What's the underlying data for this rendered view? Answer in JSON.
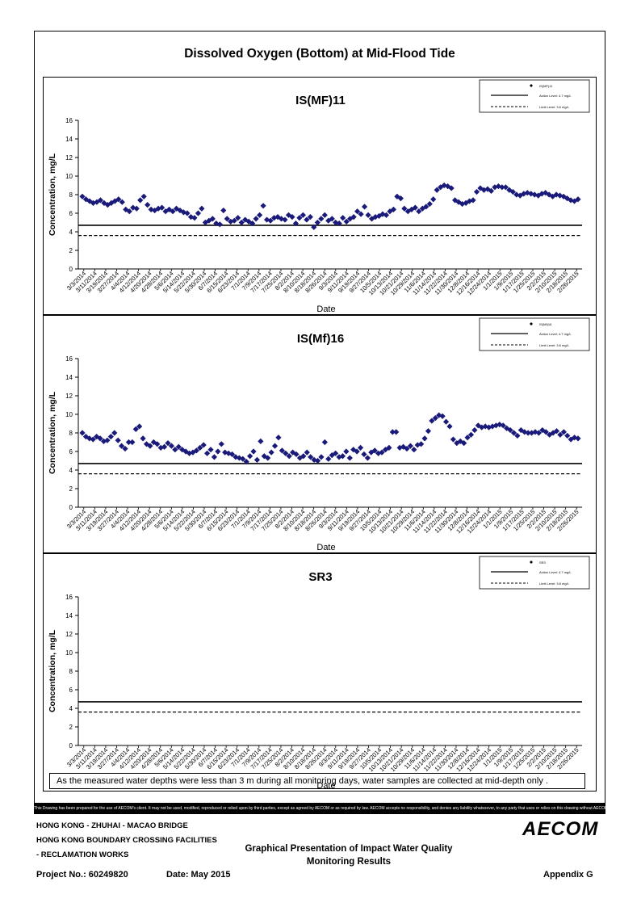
{
  "page": {
    "main_title": "Dissolved Oxygen (Bottom) at Mid-Flood Tide",
    "note": "As the measured water depths were less than 3 m during all monitoring days, water samples are collected  at mid-depth only .",
    "disclaimer": "This Drawing has been prepared for the use of AECOM's client. It may not be used, modified, reproduced or relied upon by third parties, except as agreed by AECOM or as required by law. AECOM accepts no responsibility, and denies any liability whatsoever, to any party that uses or relies on this drawing without AECOM's express written consent.",
    "footer": {
      "line1": "HONG KONG - ZHUHAI - MACAO BRIDGE",
      "line2": "HONG KONG BOUNDARY CROSSING FACILITIES",
      "line3": "- RECLAMATION WORKS",
      "center_line1": "Graphical Presentation of Impact Water Quality",
      "center_line2": "Monitoring Results",
      "project": "Project No.: 60249820",
      "date": "Date: May 2015",
      "appendix": "Appendix G",
      "logo": "AECOM"
    }
  },
  "chart_data": [
    {
      "type": "scatter",
      "title": "IS(MF)11",
      "xlabel": "Date",
      "ylabel": "Concentration, mg/L",
      "ylim": [
        0,
        16
      ],
      "yticks": [
        0,
        2,
        4,
        6,
        8,
        10,
        12,
        14,
        16
      ],
      "xticks": [
        "3/3/2014",
        "3/11/2014",
        "3/19/2014",
        "3/27/2014",
        "4/4/2014",
        "4/12/2014",
        "4/20/2014",
        "4/28/2014",
        "5/6/2014",
        "5/14/2014",
        "5/22/2014",
        "5/30/2014",
        "6/7/2014",
        "6/15/2014",
        "6/23/2014",
        "7/1/2014",
        "7/9/2014",
        "7/17/2014",
        "7/25/2014",
        "8/2/2014",
        "8/10/2014",
        "8/18/2014",
        "8/26/2014",
        "9/3/2014",
        "9/11/2014",
        "9/19/2014",
        "9/27/2014",
        "10/5/2014",
        "10/13/2014",
        "10/21/2014",
        "10/29/2014",
        "11/6/2014",
        "11/14/2014",
        "11/22/2014",
        "11/30/2014",
        "12/8/2014",
        "12/16/2014",
        "12/24/2014",
        "1/1/2015",
        "1/9/2015",
        "1/17/2015",
        "1/25/2015",
        "2/2/2015",
        "2/10/2015",
        "2/18/2015",
        "2/26/2015"
      ],
      "legend": {
        "placement": "top-right",
        "series": "IS(MF)11",
        "action": "Action Level: 4.7 mg/L",
        "limit": "Limit Level: 3.6 mg/L"
      },
      "action_level": 4.7,
      "limit_level": 3.6,
      "values": [
        7.8,
        7.5,
        7.3,
        7.1,
        7.2,
        7.4,
        7.1,
        6.9,
        7.1,
        7.3,
        7.5,
        7.2,
        6.4,
        6.2,
        6.6,
        6.5,
        7.4,
        7.8,
        6.9,
        6.4,
        6.3,
        6.5,
        6.6,
        6.2,
        6.4,
        6.2,
        6.5,
        6.3,
        6.1,
        6.0,
        5.6,
        5.5,
        6.0,
        6.5,
        5.0,
        5.2,
        5.4,
        4.9,
        4.8,
        6.3,
        5.4,
        5.1,
        5.2,
        5.5,
        5.0,
        5.3,
        5.1,
        4.9,
        5.4,
        5.8,
        6.8,
        5.3,
        5.2,
        5.5,
        5.6,
        5.4,
        5.3,
        5.8,
        5.6,
        4.9,
        5.5,
        5.8,
        5.3,
        5.6,
        4.5,
        5.0,
        5.4,
        5.8,
        5.2,
        5.4,
        5.0,
        4.9,
        5.5,
        5.1,
        5.4,
        5.6,
        6.2,
        5.9,
        6.7,
        5.8,
        5.4,
        5.6,
        5.7,
        5.9,
        5.8,
        6.2,
        6.4,
        7.8,
        7.6,
        6.5,
        6.2,
        6.4,
        6.6,
        6.2,
        6.5,
        6.7,
        7.0,
        7.5,
        8.5,
        8.8,
        9.0,
        8.9,
        8.7,
        7.4,
        7.2,
        7.0,
        7.1,
        7.3,
        7.4,
        8.3,
        8.7,
        8.5,
        8.6,
        8.4,
        8.8,
        8.9,
        8.8,
        8.8,
        8.5,
        8.3,
        8.0,
        7.9,
        8.1,
        8.2,
        8.1,
        8.0,
        7.9,
        8.1,
        8.2,
        8.0,
        7.8,
        8.0,
        7.9,
        7.8,
        7.6,
        7.4,
        7.3,
        7.5
      ]
    },
    {
      "type": "scatter",
      "title": "IS(Mf)16",
      "xlabel": "Date",
      "ylabel": "Concentration, mg/L",
      "ylim": [
        0,
        16
      ],
      "yticks": [
        0,
        2,
        4,
        6,
        8,
        10,
        12,
        14,
        16
      ],
      "xticks": [
        "3/3/2014",
        "3/11/2014",
        "3/19/2014",
        "3/27/2014",
        "4/4/2014",
        "4/12/2014",
        "4/20/2014",
        "4/28/2014",
        "5/6/2014",
        "5/14/2014",
        "5/22/2014",
        "5/30/2014",
        "6/7/2014",
        "6/15/2014",
        "6/23/2014",
        "7/1/2014",
        "7/9/2014",
        "7/17/2014",
        "7/25/2014",
        "8/2/2014",
        "8/10/2014",
        "8/18/2014",
        "8/26/2014",
        "9/3/2014",
        "9/11/2014",
        "9/19/2014",
        "9/27/2014",
        "10/5/2014",
        "10/13/2014",
        "10/21/2014",
        "10/29/2014",
        "11/6/2014",
        "11/14/2014",
        "11/22/2014",
        "11/30/2014",
        "12/8/2014",
        "12/16/2014",
        "12/24/2014",
        "1/1/2015",
        "1/9/2015",
        "1/17/2015",
        "1/25/2015",
        "2/2/2015",
        "2/10/2015",
        "2/18/2015",
        "2/26/2015"
      ],
      "legend": {
        "placement": "top-right",
        "series": "IS(Mf)16",
        "action": "Action Level: 4.7 mg/L",
        "limit": "Limit Level: 3.6 mg/L"
      },
      "action_level": 4.7,
      "limit_level": 3.6,
      "values": [
        8.0,
        7.6,
        7.4,
        7.3,
        7.6,
        7.4,
        7.1,
        7.2,
        7.6,
        8.0,
        7.2,
        6.6,
        6.3,
        7.0,
        7.0,
        8.4,
        8.7,
        7.4,
        6.8,
        6.6,
        7.0,
        6.8,
        6.4,
        6.5,
        6.9,
        6.6,
        6.2,
        6.5,
        6.2,
        6.0,
        5.8,
        5.9,
        6.1,
        6.4,
        6.7,
        5.8,
        6.2,
        5.4,
        6.0,
        6.8,
        5.9,
        5.8,
        5.7,
        5.4,
        5.3,
        5.2,
        4.9,
        5.5,
        6.0,
        5.1,
        7.1,
        5.5,
        5.3,
        5.9,
        6.6,
        7.5,
        6.1,
        5.8,
        5.5,
        5.9,
        5.7,
        5.3,
        5.5,
        5.9,
        5.4,
        5.1,
        5.0,
        5.4,
        7.0,
        5.2,
        5.6,
        5.8,
        5.4,
        5.5,
        6.0,
        5.3,
        6.2,
        6.0,
        6.4,
        5.7,
        5.3,
        5.9,
        6.1,
        5.8,
        5.9,
        6.2,
        6.4,
        8.1,
        8.1,
        6.4,
        6.5,
        6.3,
        6.6,
        6.2,
        6.7,
        6.8,
        7.4,
        8.2,
        9.3,
        9.6,
        9.9,
        9.8,
        9.2,
        8.7,
        7.3,
        6.9,
        7.1,
        6.9,
        7.5,
        7.8,
        8.3,
        8.8,
        8.6,
        8.7,
        8.6,
        8.7,
        8.8,
        8.9,
        8.8,
        8.5,
        8.3,
        8.0,
        7.7,
        8.3,
        8.1,
        8.0,
        8.0,
        8.1,
        8.0,
        8.3,
        8.1,
        7.8,
        8.0,
        8.2,
        7.8,
        8.1,
        7.7,
        7.3,
        7.5,
        7.4
      ]
    },
    {
      "type": "scatter",
      "title": "SR3",
      "xlabel": "Date",
      "ylabel": "Concentration, mg/L",
      "ylim": [
        0,
        16
      ],
      "yticks": [
        0,
        2,
        4,
        6,
        8,
        10,
        12,
        14,
        16
      ],
      "xticks": [
        "3/3/2014",
        "3/11/2014",
        "3/19/2014",
        "3/27/2014",
        "4/4/2014",
        "4/12/2014",
        "4/20/2014",
        "4/28/2014",
        "5/6/2014",
        "5/14/2014",
        "5/22/2014",
        "5/30/2014",
        "6/7/2014",
        "6/15/2014",
        "6/23/2014",
        "7/1/2014",
        "7/9/2014",
        "7/17/2014",
        "7/25/2014",
        "8/2/2014",
        "8/10/2014",
        "8/18/2014",
        "8/26/2014",
        "9/3/2014",
        "9/11/2014",
        "9/19/2014",
        "9/27/2014",
        "10/5/2014",
        "10/13/2014",
        "10/21/2014",
        "10/29/2014",
        "11/6/2014",
        "11/14/2014",
        "11/22/2014",
        "11/30/2014",
        "12/8/2014",
        "12/16/2014",
        "12/24/2014",
        "1/1/2015",
        "1/9/2015",
        "1/17/2015",
        "1/25/2015",
        "2/2/2015",
        "2/10/2015",
        "2/18/2015",
        "2/26/2015"
      ],
      "legend": {
        "placement": "top-right",
        "series": "SR3",
        "action": "Action Level: 4.7 mg/L",
        "limit": "Limit Level: 3.6 mg/L"
      },
      "action_level": 4.7,
      "limit_level": 3.6,
      "values": []
    }
  ]
}
